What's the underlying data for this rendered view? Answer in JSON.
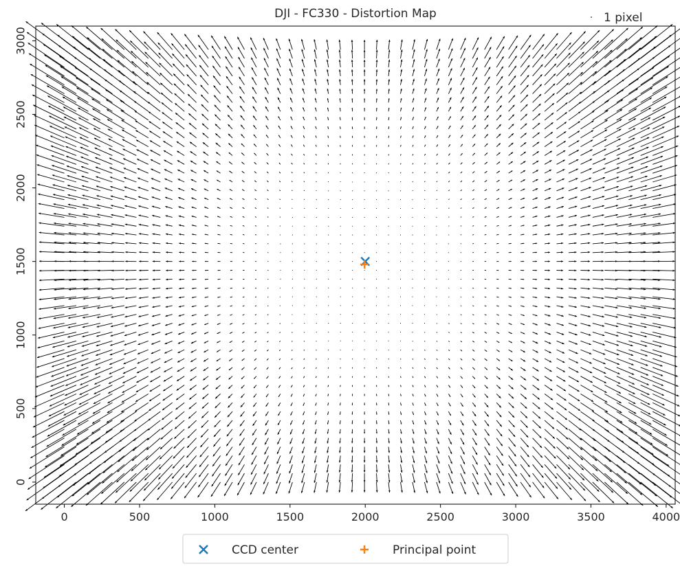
{
  "chart_data": {
    "type": "quiver",
    "title": "DJI - FC330 - Distortion Map",
    "xlabel": "",
    "ylabel": "",
    "xlim": [
      -190,
      4060
    ],
    "ylim": [
      -150,
      3100
    ],
    "x_ticks": [
      0,
      500,
      1000,
      1500,
      2000,
      2500,
      3000,
      3500,
      4000
    ],
    "y_ticks": [
      0,
      500,
      1000,
      1500,
      2000,
      2500,
      3000
    ],
    "quiver_grid": {
      "x_min": 0,
      "x_max": 3910,
      "nx": 50,
      "y_min": 0,
      "y_max": 2940,
      "ny": 50
    },
    "quiver_key": {
      "label": "1 pixel"
    },
    "points": [
      {
        "name": "CCD center",
        "x": 2000,
        "y": 1500,
        "marker": "x",
        "color": "#1f77b4"
      },
      {
        "name": "Principal point",
        "x": 1995,
        "y": 1480,
        "marker": "+",
        "color": "#ff7f0e"
      }
    ],
    "legend": {
      "placement": "bottom-center, outside",
      "entries": [
        "CCD center",
        "Principal point"
      ]
    },
    "colors": {
      "arrows": "#000000",
      "ccd": "#1f77b4",
      "pp": "#ff7f0e",
      "axes": "#000000",
      "text": "#262626"
    }
  }
}
